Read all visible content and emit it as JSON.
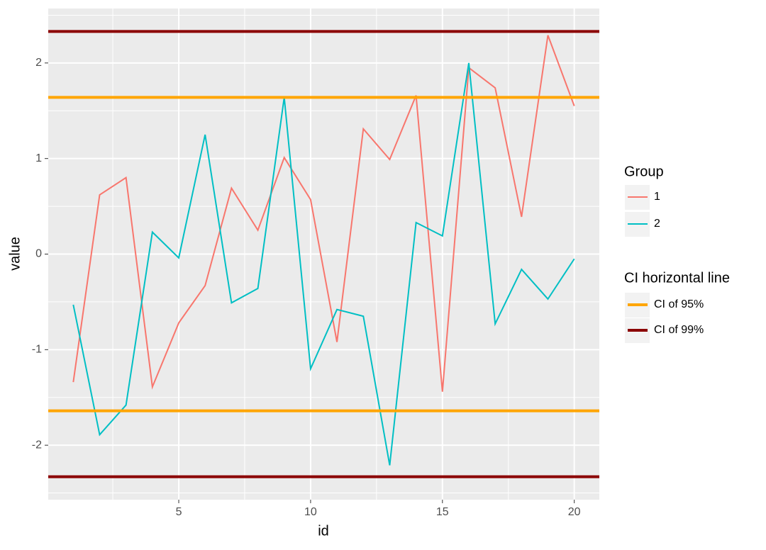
{
  "chart_data": {
    "type": "line",
    "x_label": "id",
    "y_label": "value",
    "x": [
      1,
      2,
      3,
      4,
      5,
      6,
      7,
      8,
      9,
      10,
      11,
      12,
      13,
      14,
      15,
      16,
      17,
      18,
      19,
      20
    ],
    "series": [
      {
        "name": "1",
        "color": "#F8766D",
        "values": [
          -1.34,
          0.62,
          0.8,
          -1.39,
          -0.72,
          -0.33,
          0.69,
          0.25,
          1.01,
          0.57,
          -0.92,
          1.31,
          0.99,
          1.66,
          -1.44,
          1.95,
          1.74,
          0.39,
          2.29,
          1.55
        ]
      },
      {
        "name": "2",
        "color": "#00BFC4",
        "values": [
          -0.53,
          -1.89,
          -1.58,
          0.23,
          -0.04,
          1.25,
          -0.51,
          -0.36,
          1.64,
          -1.2,
          -0.58,
          -0.65,
          -2.21,
          0.33,
          0.19,
          2.0,
          -0.73,
          -0.16,
          -0.47,
          -0.05
        ]
      }
    ],
    "legend_title": "Group",
    "hlines_title": "CI horizontal line",
    "hlines": [
      {
        "name": "CI of 95%",
        "color": "#FFA500",
        "values": [
          1.64,
          -1.64
        ]
      },
      {
        "name": "CI of 99%",
        "color": "#8B0000",
        "values": [
          2.33,
          -2.33
        ]
      }
    ],
    "xlim": [
      0.05,
      20.95
    ],
    "xticks": [
      5,
      10,
      15,
      20
    ],
    "ylim": [
      -2.57,
      2.57
    ],
    "yticks": [
      -2,
      -1,
      0,
      1,
      2
    ],
    "grid": true,
    "legend_position": "right"
  }
}
